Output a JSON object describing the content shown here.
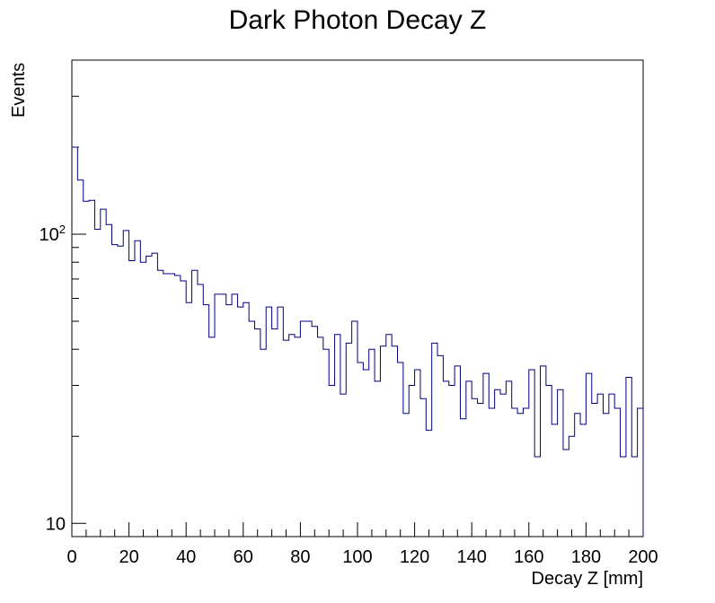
{
  "chart_data": {
    "type": "histogram",
    "title": "Dark Photon Decay Z",
    "xlabel": "Decay Z [mm]",
    "ylabel": "Events",
    "x_range": [
      0,
      200
    ],
    "y_range": [
      9,
      400
    ],
    "y_scale": "log",
    "grid": false,
    "line_color": "#000080",
    "x_tick_labels": [
      "0",
      "20",
      "40",
      "60",
      "80",
      "100",
      "120",
      "140",
      "160",
      "180",
      "200"
    ],
    "y_tick_labels": [
      {
        "value": 10,
        "base": "10",
        "exp": ""
      },
      {
        "value": 100,
        "base": "10",
        "exp": "2"
      }
    ],
    "bin_width": 2,
    "bin_start": 0,
    "counts": [
      200,
      154,
      130,
      131,
      104,
      122,
      108,
      92,
      91,
      103,
      81,
      95,
      80,
      84,
      86,
      75,
      73,
      73,
      72,
      69,
      58,
      75,
      67,
      57,
      44,
      62,
      62,
      57,
      62,
      56,
      58,
      50,
      47,
      40,
      56,
      47,
      56,
      43,
      45,
      44,
      50,
      50,
      48,
      44,
      40,
      30,
      45,
      28,
      42,
      50,
      36,
      34,
      40,
      31,
      41,
      45,
      41,
      36,
      24,
      30,
      34,
      27,
      21,
      42,
      38,
      31,
      30,
      35,
      23,
      31,
      27,
      26,
      33,
      25,
      29,
      28,
      31,
      25,
      24,
      25,
      34,
      17,
      35,
      30,
      22,
      29,
      18,
      20,
      24,
      22,
      33,
      26,
      28,
      24,
      28,
      25,
      17,
      32,
      17,
      25
    ]
  }
}
